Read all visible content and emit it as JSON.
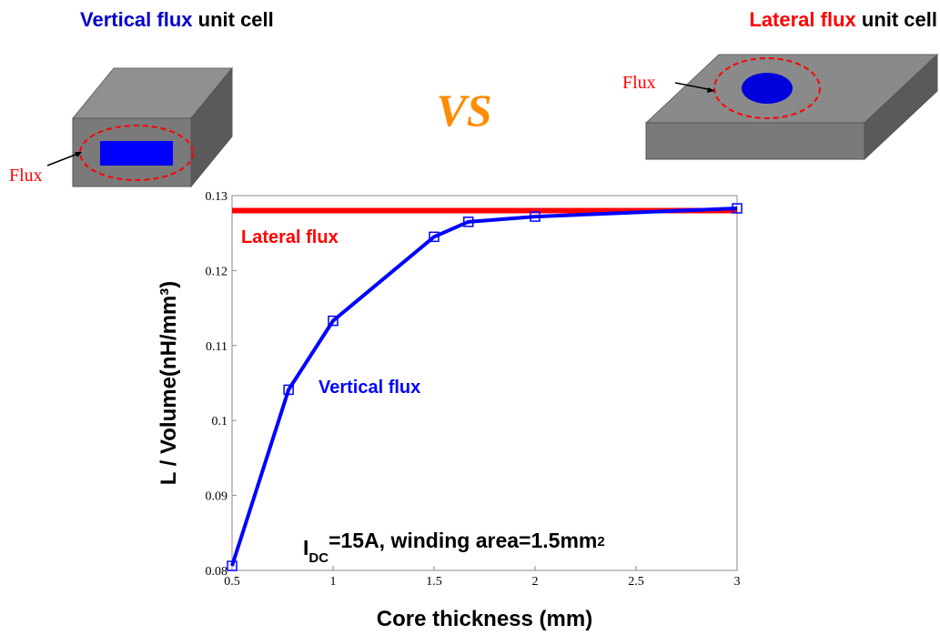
{
  "left_title": {
    "highlight": "Vertical flux",
    "rest": "unit cell"
  },
  "right_title": {
    "highlight": "Lateral flux",
    "rest": "unit cell"
  },
  "vs_label": "VS",
  "left_flux_label": "Flux",
  "right_flux_label": "Flux",
  "chart_data": {
    "type": "line",
    "x_label": "Core thickness (mm)",
    "y_label": "L / Volume(nH/mm³)",
    "annotation": [
      "I",
      "DC",
      "=15A, winding area=1.5mm",
      "2"
    ],
    "xlim": [
      0.5,
      3
    ],
    "xticks": [
      0.5,
      1,
      1.5,
      2,
      2.5,
      3
    ],
    "ylim": [
      0.08,
      0.13
    ],
    "yticks": [
      0.08,
      0.09,
      0.1,
      0.11,
      0.12,
      0.13
    ],
    "grid": false,
    "series": [
      {
        "name": "Lateral flux",
        "color": "#ff0000",
        "x": [
          0.5,
          3
        ],
        "values": [
          0.128,
          0.128
        ],
        "markers": false
      },
      {
        "name": "Vertical flux",
        "color": "#0000ff",
        "x": [
          0.5,
          0.78,
          1,
          1.5,
          1.67,
          2,
          3
        ],
        "values": [
          0.0806,
          0.1041,
          0.1133,
          0.1245,
          0.1265,
          0.1272,
          0.1283
        ],
        "markers": true
      }
    ]
  }
}
